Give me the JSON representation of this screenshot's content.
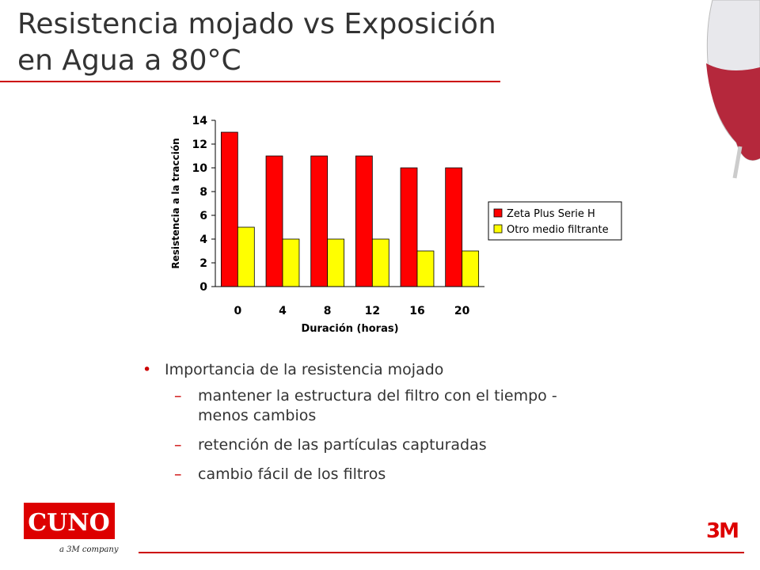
{
  "title_lines": [
    "Resistencia mojado vs Exposición",
    "en Agua a 80°C"
  ],
  "chart_data": {
    "type": "bar",
    "categories": [
      "0",
      "4",
      "8",
      "12",
      "16",
      "20"
    ],
    "series": [
      {
        "name": "Zeta Plus Serie H",
        "color": "#ff0000",
        "values": [
          13,
          11,
          11,
          11,
          10,
          10
        ]
      },
      {
        "name": "Otro medio filtrante",
        "color": "#ffff00",
        "values": [
          5,
          4,
          4,
          4,
          3,
          3
        ]
      }
    ],
    "ylim": [
      0,
      14
    ],
    "yticks": [
      0,
      2,
      4,
      6,
      8,
      10,
      12,
      14
    ],
    "x_label": "Duración (horas)",
    "y_label": "Resistencia a la tracción",
    "legend": "right"
  },
  "bullets": [
    {
      "text": "Importancia de la resistencia mojado",
      "subitems": [
        "mantener la estructura del filtro con el tiempo - menos cambios",
        "retención de las partículas capturadas",
        "cambio fácil de los filtros"
      ]
    }
  ],
  "logos": {
    "cuno": "CUNO",
    "cuno_tagline": "a 3M company",
    "threem": "3M"
  }
}
